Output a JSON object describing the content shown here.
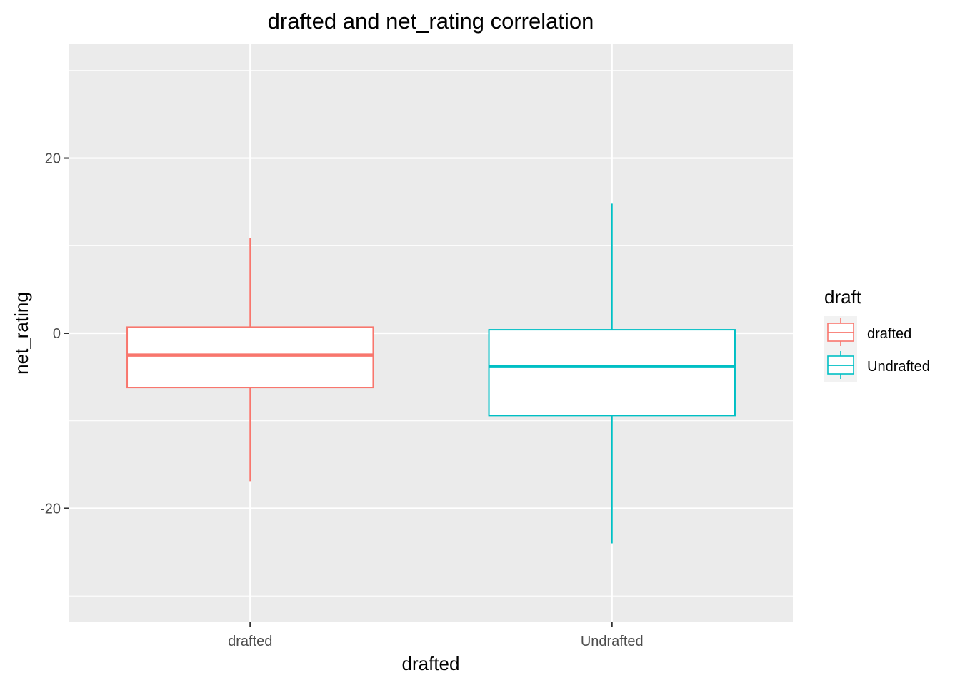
{
  "chart_data": {
    "type": "box",
    "title": "drafted and net_rating correlation",
    "xlabel": "drafted",
    "ylabel": "net_rating",
    "categories": [
      "drafted",
      "Undrafted"
    ],
    "ylim": [
      -33,
      33
    ],
    "y_ticks": [
      -20,
      0,
      20
    ],
    "grid": true,
    "boxes": [
      {
        "category": "drafted",
        "color": "#F8766D",
        "whisker_low": -16.9,
        "q1": -6.2,
        "median": -2.5,
        "q3": 0.7,
        "whisker_high": 10.9
      },
      {
        "category": "Undrafted",
        "color": "#00BFC4",
        "whisker_low": -24.0,
        "q1": -9.4,
        "median": -3.8,
        "q3": 0.4,
        "whisker_high": 14.8
      }
    ],
    "legend": {
      "title": "draft",
      "position": "right",
      "entries": [
        {
          "label": "drafted",
          "color": "#F8766D"
        },
        {
          "label": "Undrafted",
          "color": "#00BFC4"
        }
      ]
    },
    "colors": {
      "panel_background": "#EBEBEB",
      "grid": "#FFFFFF"
    }
  }
}
